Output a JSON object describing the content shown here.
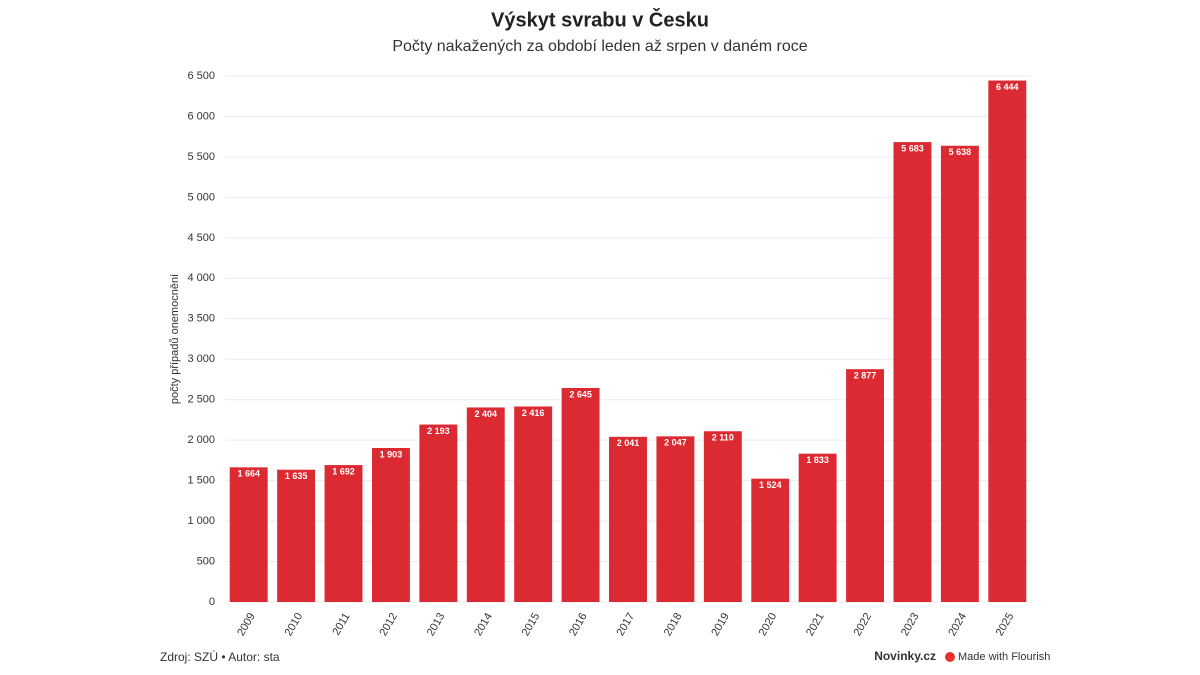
{
  "chart_data": {
    "type": "bar",
    "title": "Výskyt svrabu v Česku",
    "subtitle": "Počty nakažených za období leden až srpen v daném roce",
    "y_label": "počty případů onemocnění",
    "categories": [
      "2009",
      "2010",
      "2011",
      "2012",
      "2013",
      "2014",
      "2015",
      "2016",
      "2017",
      "2018",
      "2019",
      "2020",
      "2021",
      "2022",
      "2023",
      "2024",
      "2025"
    ],
    "values": [
      1664,
      1635,
      1692,
      1903,
      2193,
      2404,
      2416,
      2645,
      2041,
      2047,
      2110,
      1524,
      1833,
      2877,
      5683,
      5638,
      6444
    ],
    "value_labels": [
      "1 664",
      "1 635",
      "1 692",
      "1 903",
      "2 193",
      "2 404",
      "2 416",
      "2 645",
      "2 041",
      "2 047",
      "2 110",
      "1 524",
      "1 833",
      "2 877",
      "5 683",
      "5 638",
      "6 444"
    ],
    "color": "#dc2a32",
    "ylim": [
      0,
      6500
    ],
    "yticks": [
      0,
      500,
      {
        "value": 1000,
        "label": "1 000"
      },
      {
        "value": 1500,
        "label": "1 500"
      },
      {
        "value": 2000,
        "label": "2 000"
      },
      {
        "value": 2500,
        "label": "2 500"
      },
      {
        "value": 3000,
        "label": "3 000"
      },
      {
        "value": 3500,
        "label": "3 500"
      },
      {
        "value": 4000,
        "label": "4 000"
      },
      {
        "value": 4500,
        "label": "4 500"
      },
      {
        "value": 5000,
        "label": "5 000"
      },
      {
        "value": 5500,
        "label": "5 500"
      },
      {
        "value": 6000,
        "label": "6 000"
      },
      {
        "value": 6500,
        "label": "6 500"
      }
    ],
    "grid": true,
    "source": "Zdroj: SZÚ • Autor: sta",
    "publisher": "Novinky.cz",
    "credit": "Made with Flourish"
  }
}
